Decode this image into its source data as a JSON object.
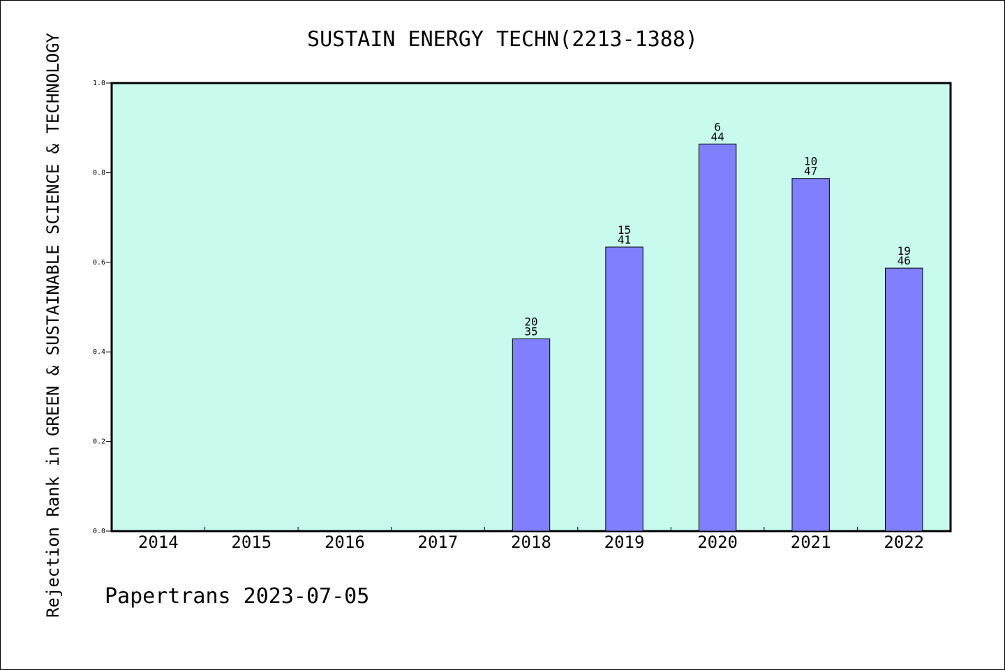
{
  "chart_data": {
    "type": "bar",
    "title": "SUSTAIN ENERGY TECHN(2213-1388)",
    "xlabel": "",
    "ylabel": "Rejection Rank in GREEN & SUSTAINABLE SCIENCE & TECHNOLOGY",
    "ylim": [
      0,
      1.0
    ],
    "yticks": [
      "0.0",
      "0.2",
      "0.4",
      "0.6",
      "0.8",
      "1.0"
    ],
    "categories": [
      "2014",
      "2015",
      "2016",
      "2017",
      "2018",
      "2019",
      "2020",
      "2021",
      "2022"
    ],
    "values": [
      null,
      null,
      null,
      null,
      0.429,
      0.634,
      0.864,
      0.787,
      0.587
    ],
    "rank_labels": [
      "",
      "",
      "",
      "",
      "20",
      "15",
      "6",
      "10",
      "19"
    ],
    "total_labels": [
      "",
      "",
      "",
      "",
      "35",
      "41",
      "44",
      "47",
      "46"
    ],
    "grid": false,
    "colors": {
      "plot_background": "#c8fbee",
      "bar_fill": "#8080ff",
      "bar_stroke": "#000000"
    }
  },
  "footer": "Papertrans 2023-07-05"
}
